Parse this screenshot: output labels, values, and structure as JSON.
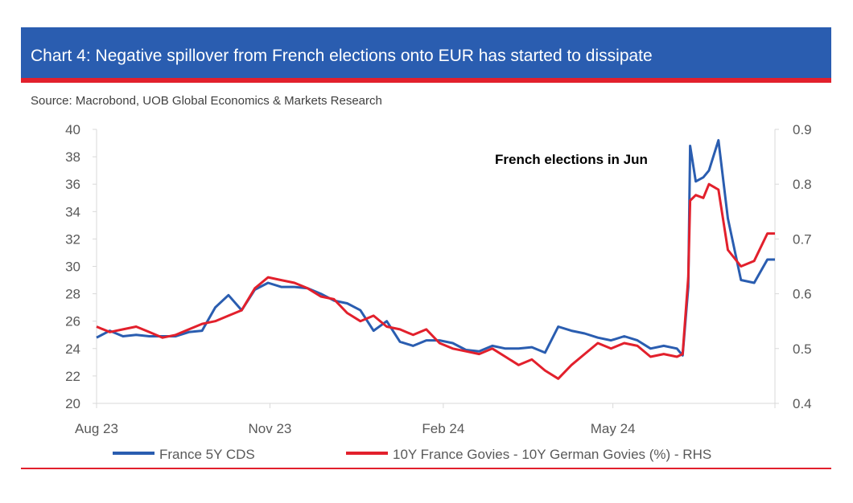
{
  "header": {
    "title": "Chart 4: Negative spillover from French elections onto EUR has started to dissipate",
    "source": "Source: Macrobond, UOB Global Economics & Markets Research"
  },
  "chart_data": {
    "type": "line",
    "annotation": "French elections in Jun",
    "x_ticks": [
      "Aug 23",
      "Nov 23",
      "Feb 24",
      "May 24"
    ],
    "x_range": [
      "2023-08-01",
      "2024-07-26"
    ],
    "ylim_left": [
      20,
      40
    ],
    "yticks_left": [
      "20",
      "22",
      "24",
      "26",
      "28",
      "30",
      "32",
      "34",
      "36",
      "38",
      "40"
    ],
    "ylim_right": [
      0.4,
      0.9
    ],
    "yticks_right": [
      "0.4",
      "0.5",
      "0.6",
      "0.7",
      "0.8",
      "0.9"
    ],
    "grid": false,
    "legend_position": "bottom",
    "series": [
      {
        "name": "France 5Y CDS",
        "axis": "left",
        "color": "#2a5db0",
        "points": [
          [
            "2023-08-01",
            24.8
          ],
          [
            "2023-08-08",
            25.3
          ],
          [
            "2023-08-15",
            24.9
          ],
          [
            "2023-08-22",
            25.0
          ],
          [
            "2023-08-29",
            24.9
          ],
          [
            "2023-09-05",
            24.9
          ],
          [
            "2023-09-12",
            24.9
          ],
          [
            "2023-09-19",
            25.2
          ],
          [
            "2023-09-26",
            25.3
          ],
          [
            "2023-10-03",
            27.0
          ],
          [
            "2023-10-10",
            27.9
          ],
          [
            "2023-10-17",
            26.8
          ],
          [
            "2023-10-24",
            28.3
          ],
          [
            "2023-10-31",
            28.8
          ],
          [
            "2023-11-07",
            28.5
          ],
          [
            "2023-11-14",
            28.5
          ],
          [
            "2023-11-21",
            28.4
          ],
          [
            "2023-11-28",
            28.0
          ],
          [
            "2023-12-05",
            27.5
          ],
          [
            "2023-12-12",
            27.3
          ],
          [
            "2023-12-19",
            26.8
          ],
          [
            "2023-12-26",
            25.3
          ],
          [
            "2024-01-02",
            26.0
          ],
          [
            "2024-01-09",
            24.5
          ],
          [
            "2024-01-16",
            24.2
          ],
          [
            "2024-01-23",
            24.6
          ],
          [
            "2024-01-30",
            24.6
          ],
          [
            "2024-02-06",
            24.4
          ],
          [
            "2024-02-13",
            23.9
          ],
          [
            "2024-02-20",
            23.8
          ],
          [
            "2024-02-27",
            24.2
          ],
          [
            "2024-03-05",
            24.0
          ],
          [
            "2024-03-12",
            24.0
          ],
          [
            "2024-03-19",
            24.1
          ],
          [
            "2024-03-26",
            23.7
          ],
          [
            "2024-04-02",
            25.6
          ],
          [
            "2024-04-09",
            25.3
          ],
          [
            "2024-04-16",
            25.1
          ],
          [
            "2024-04-23",
            24.8
          ],
          [
            "2024-04-30",
            24.6
          ],
          [
            "2024-05-07",
            24.9
          ],
          [
            "2024-05-14",
            24.6
          ],
          [
            "2024-05-21",
            24.0
          ],
          [
            "2024-05-28",
            24.2
          ],
          [
            "2024-06-04",
            24.0
          ],
          [
            "2024-06-07",
            23.5
          ],
          [
            "2024-06-10",
            28.5
          ],
          [
            "2024-06-11",
            38.8
          ],
          [
            "2024-06-14",
            36.2
          ],
          [
            "2024-06-18",
            36.5
          ],
          [
            "2024-06-21",
            37.0
          ],
          [
            "2024-06-26",
            39.2
          ],
          [
            "2024-07-01",
            33.5
          ],
          [
            "2024-07-08",
            29.0
          ],
          [
            "2024-07-15",
            28.8
          ],
          [
            "2024-07-22",
            30.5
          ],
          [
            "2024-07-26",
            30.5
          ]
        ]
      },
      {
        "name": "10Y France Govies - 10Y German Govies (%) - RHS",
        "axis": "right",
        "color": "#e2202c",
        "points": [
          [
            "2023-08-01",
            0.54
          ],
          [
            "2023-08-08",
            0.53
          ],
          [
            "2023-08-15",
            0.535
          ],
          [
            "2023-08-22",
            0.54
          ],
          [
            "2023-08-29",
            0.53
          ],
          [
            "2023-09-05",
            0.52
          ],
          [
            "2023-09-12",
            0.525
          ],
          [
            "2023-09-19",
            0.535
          ],
          [
            "2023-09-26",
            0.545
          ],
          [
            "2023-10-03",
            0.55
          ],
          [
            "2023-10-10",
            0.56
          ],
          [
            "2023-10-17",
            0.57
          ],
          [
            "2023-10-24",
            0.61
          ],
          [
            "2023-10-31",
            0.63
          ],
          [
            "2023-11-07",
            0.625
          ],
          [
            "2023-11-14",
            0.62
          ],
          [
            "2023-11-21",
            0.61
          ],
          [
            "2023-11-28",
            0.595
          ],
          [
            "2023-12-05",
            0.59
          ],
          [
            "2023-12-12",
            0.565
          ],
          [
            "2023-12-19",
            0.55
          ],
          [
            "2023-12-26",
            0.56
          ],
          [
            "2024-01-02",
            0.54
          ],
          [
            "2024-01-09",
            0.535
          ],
          [
            "2024-01-16",
            0.525
          ],
          [
            "2024-01-23",
            0.535
          ],
          [
            "2024-01-30",
            0.51
          ],
          [
            "2024-02-06",
            0.5
          ],
          [
            "2024-02-13",
            0.495
          ],
          [
            "2024-02-20",
            0.49
          ],
          [
            "2024-02-27",
            0.5
          ],
          [
            "2024-03-05",
            0.485
          ],
          [
            "2024-03-12",
            0.47
          ],
          [
            "2024-03-19",
            0.48
          ],
          [
            "2024-03-26",
            0.46
          ],
          [
            "2024-04-02",
            0.445
          ],
          [
            "2024-04-09",
            0.47
          ],
          [
            "2024-04-16",
            0.49
          ],
          [
            "2024-04-23",
            0.51
          ],
          [
            "2024-04-30",
            0.5
          ],
          [
            "2024-05-07",
            0.51
          ],
          [
            "2024-05-14",
            0.505
          ],
          [
            "2024-05-21",
            0.485
          ],
          [
            "2024-05-28",
            0.49
          ],
          [
            "2024-06-04",
            0.485
          ],
          [
            "2024-06-07",
            0.49
          ],
          [
            "2024-06-10",
            0.63
          ],
          [
            "2024-06-11",
            0.77
          ],
          [
            "2024-06-14",
            0.78
          ],
          [
            "2024-06-18",
            0.775
          ],
          [
            "2024-06-21",
            0.8
          ],
          [
            "2024-06-26",
            0.79
          ],
          [
            "2024-07-01",
            0.68
          ],
          [
            "2024-07-08",
            0.65
          ],
          [
            "2024-07-15",
            0.66
          ],
          [
            "2024-07-22",
            0.71
          ],
          [
            "2024-07-26",
            0.71
          ]
        ]
      }
    ]
  }
}
